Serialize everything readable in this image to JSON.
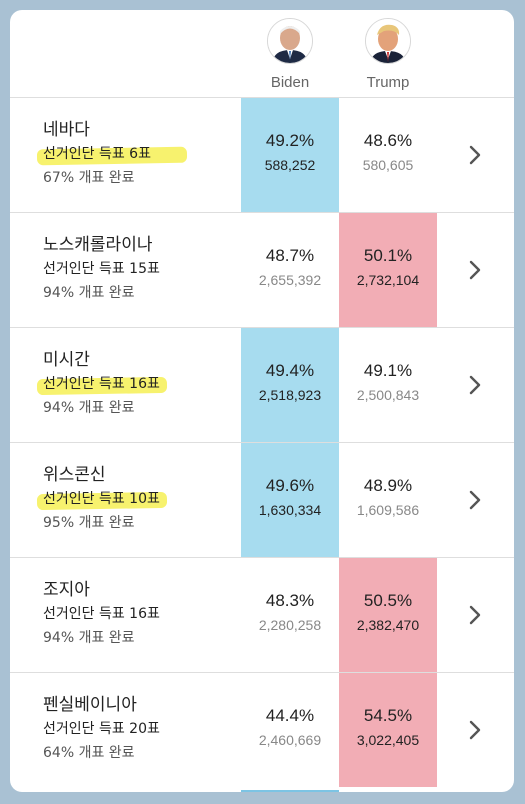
{
  "candidates": {
    "biden": {
      "name": "Biden",
      "avatar": "biden-avatar"
    },
    "trump": {
      "name": "Trump",
      "avatar": "trump-avatar"
    }
  },
  "colors": {
    "biden_win": "#a7dcef",
    "trump_win": "#f2adb5",
    "highlight": "#f6f055"
  },
  "states": [
    {
      "name": "네바다",
      "ev": "선거인단 득표 6표",
      "reported": "67% 개표 완료",
      "biden_pct": "49.2%",
      "biden_votes": "588,252",
      "trump_pct": "48.6%",
      "trump_votes": "580,605",
      "winner": "biden",
      "highlighted": true
    },
    {
      "name": "노스캐롤라이나",
      "ev": "선거인단 득표 15표",
      "reported": "94% 개표 완료",
      "biden_pct": "48.7%",
      "biden_votes": "2,655,392",
      "trump_pct": "50.1%",
      "trump_votes": "2,732,104",
      "winner": "trump",
      "highlighted": false
    },
    {
      "name": "미시간",
      "ev": "선거인단 득표 16표",
      "reported": "94% 개표 완료",
      "biden_pct": "49.4%",
      "biden_votes": "2,518,923",
      "trump_pct": "49.1%",
      "trump_votes": "2,500,843",
      "winner": "biden",
      "highlighted": true
    },
    {
      "name": "위스콘신",
      "ev": "선거인단 득표 10표",
      "reported": "95% 개표 완료",
      "biden_pct": "49.6%",
      "biden_votes": "1,630,334",
      "trump_pct": "48.9%",
      "trump_votes": "1,609,586",
      "winner": "biden",
      "highlighted": true
    },
    {
      "name": "조지아",
      "ev": "선거인단 득표 16표",
      "reported": "94% 개표 완료",
      "biden_pct": "48.3%",
      "biden_votes": "2,280,258",
      "trump_pct": "50.5%",
      "trump_votes": "2,382,470",
      "winner": "trump",
      "highlighted": false
    },
    {
      "name": "펜실베이니아",
      "ev": "선거인단 득표 20표",
      "reported": "64% 개표 완료",
      "biden_pct": "44.4%",
      "biden_votes": "2,460,669",
      "trump_pct": "54.5%",
      "trump_votes": "3,022,405",
      "winner": "trump",
      "highlighted": false
    }
  ]
}
